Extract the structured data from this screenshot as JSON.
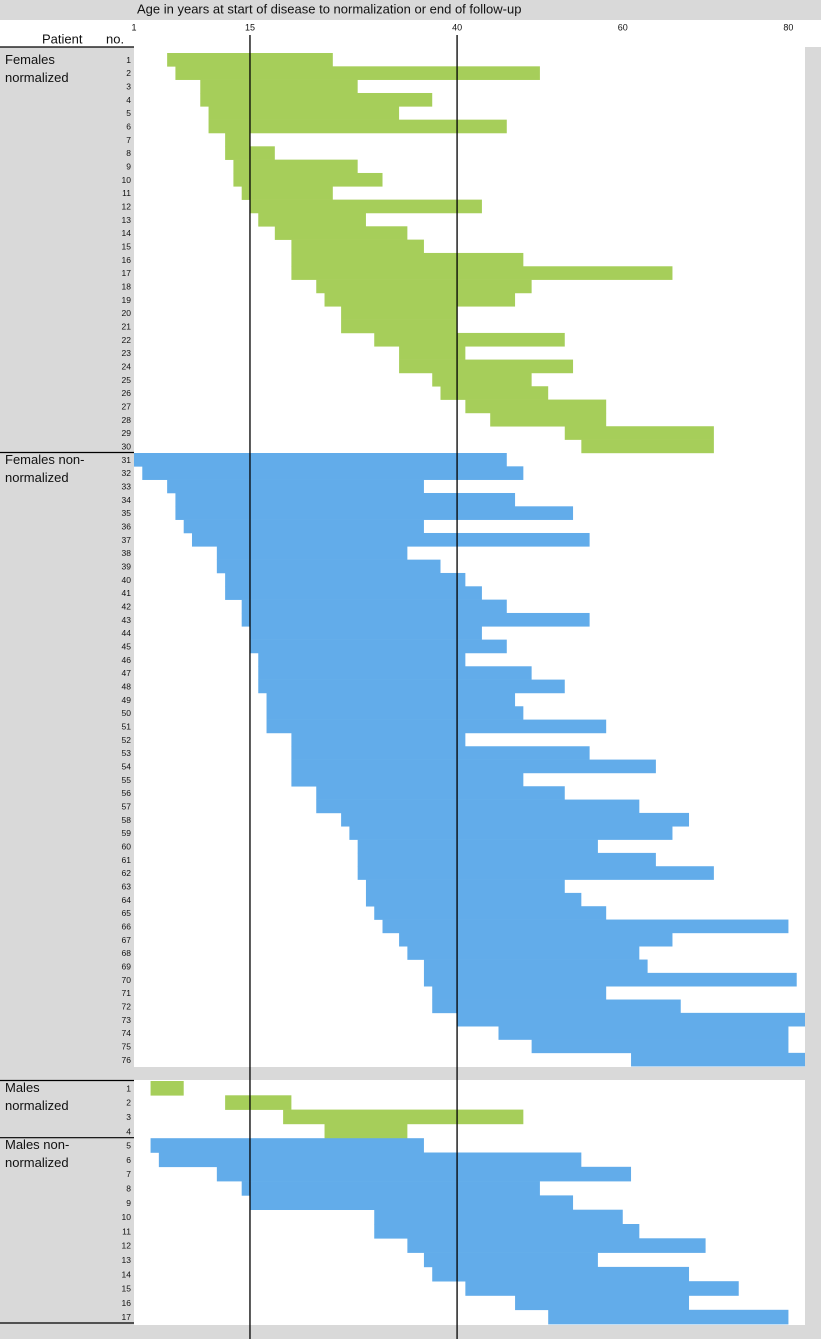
{
  "chart_data": {
    "type": "range-bar",
    "title": "Age in years at start of disease to normalization or end of follow-up",
    "patient_header": "Patient",
    "number_header": "no.",
    "xlim": [
      1,
      82
    ],
    "xticks": [
      1,
      15,
      40,
      60,
      80
    ],
    "reference_lines": [
      15,
      40
    ],
    "groups": [
      {
        "name": "Females normalized",
        "color": "#a6ce5a",
        "categories": [
          "1",
          "2",
          "3",
          "4",
          "5",
          "6",
          "7",
          "8",
          "9",
          "10",
          "11",
          "12",
          "13",
          "14",
          "15",
          "16",
          "17",
          "18",
          "19",
          "20",
          "21",
          "22",
          "23",
          "24",
          "25",
          "26",
          "27",
          "28",
          "29",
          "30"
        ],
        "start": [
          5,
          6,
          9,
          9,
          10,
          10,
          12,
          12,
          13,
          13,
          14,
          15,
          16,
          18,
          20,
          20,
          20,
          23,
          24,
          26,
          26,
          30,
          33,
          33,
          37,
          38,
          41,
          44,
          53,
          55
        ],
        "end": [
          25,
          50,
          28,
          37,
          33,
          46,
          15,
          18,
          28,
          31,
          25,
          43,
          29,
          34,
          36,
          48,
          66,
          49,
          47,
          40,
          40,
          53,
          41,
          54,
          49,
          51,
          58,
          58,
          71,
          71
        ]
      },
      {
        "name": "Females non-normalized",
        "color": "#62acea",
        "categories": [
          "31",
          "32",
          "33",
          "34",
          "35",
          "36",
          "37",
          "38",
          "39",
          "40",
          "41",
          "42",
          "43",
          "44",
          "45",
          "46",
          "47",
          "48",
          "49",
          "50",
          "51",
          "52",
          "53",
          "54",
          "55",
          "56",
          "57",
          "58",
          "59",
          "60",
          "61",
          "62",
          "63",
          "64",
          "65",
          "66",
          "67",
          "68",
          "69",
          "70",
          "71",
          "72",
          "73",
          "74",
          "75",
          "76"
        ],
        "start": [
          1,
          2,
          5,
          6,
          6,
          7,
          8,
          11,
          11,
          12,
          12,
          14,
          14,
          15,
          15,
          16,
          16,
          16,
          17,
          17,
          17,
          20,
          20,
          20,
          20,
          23,
          23,
          26,
          27,
          28,
          28,
          28,
          29,
          29,
          30,
          31,
          33,
          34,
          36,
          36,
          37,
          37,
          40,
          45,
          49,
          61
        ],
        "end": [
          46,
          48,
          36,
          47,
          54,
          36,
          56,
          34,
          38,
          41,
          43,
          46,
          56,
          43,
          46,
          41,
          49,
          53,
          47,
          48,
          58,
          41,
          56,
          64,
          48,
          53,
          62,
          68,
          66,
          57,
          64,
          71,
          53,
          55,
          58,
          80,
          66,
          62,
          63,
          81,
          58,
          67,
          82,
          80,
          80,
          82
        ]
      },
      {
        "name": "Males normalized",
        "color": "#a6ce5a",
        "categories": [
          "1",
          "2",
          "3",
          "4"
        ],
        "start": [
          3,
          12,
          19,
          24
        ],
        "end": [
          7,
          20,
          48,
          34
        ]
      },
      {
        "name": "Males non-normalized",
        "color": "#62acea",
        "categories": [
          "5",
          "6",
          "7",
          "8",
          "9",
          "10",
          "11",
          "12",
          "13",
          "14",
          "15",
          "16",
          "17"
        ],
        "start": [
          3,
          4,
          11,
          14,
          15,
          30,
          30,
          34,
          36,
          37,
          41,
          47,
          51
        ],
        "end": [
          36,
          55,
          61,
          50,
          54,
          60,
          62,
          70,
          57,
          68,
          74,
          68,
          80
        ]
      }
    ]
  }
}
